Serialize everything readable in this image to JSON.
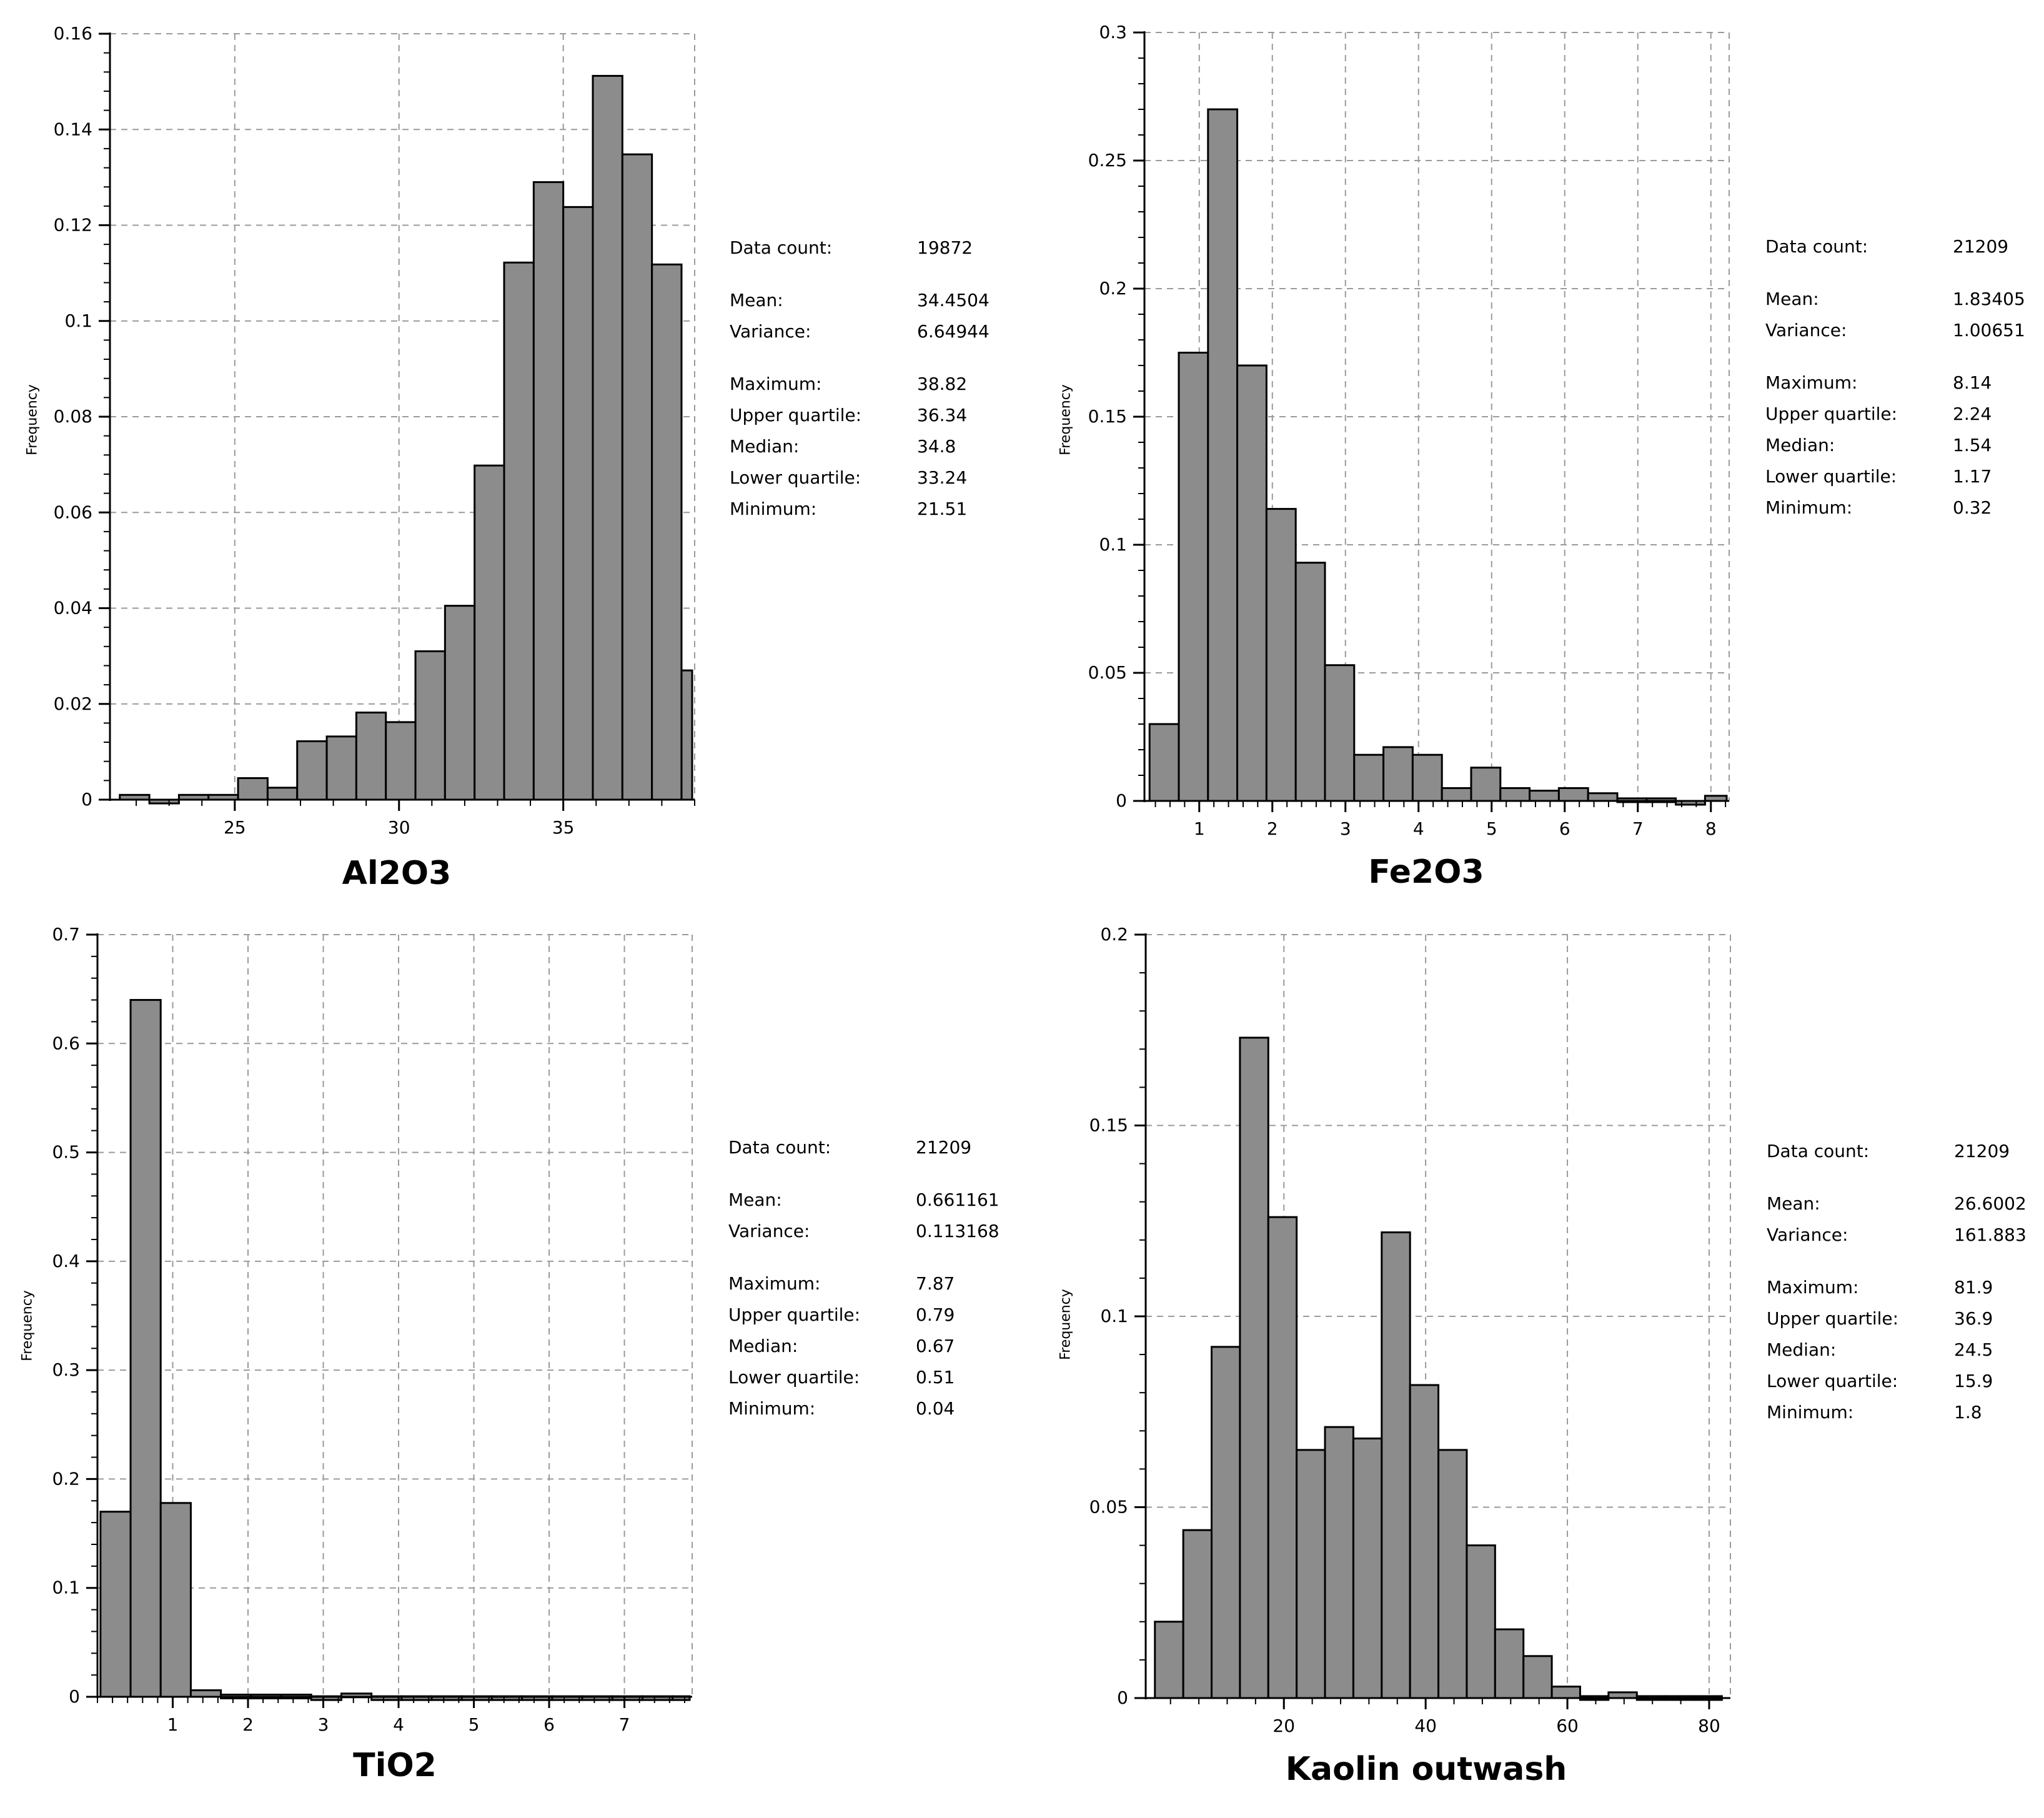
{
  "chart_data": [
    {
      "type": "bar",
      "title": "Al2O3",
      "ylabel": "Frequency",
      "xlabel": "",
      "xlim": [
        21.2,
        39.0
      ],
      "ylim": [
        0,
        0.16
      ],
      "xticks": [
        25,
        30,
        35
      ],
      "yticks": [
        0,
        0.02,
        0.04,
        0.06,
        0.08,
        0.1,
        0.12,
        0.14,
        0.16
      ],
      "bin_width": 0.9,
      "bin_start": 21.5,
      "values": [
        0.001,
        0.0,
        0.001,
        0.001,
        0.0045,
        0.0025,
        0.0122,
        0.0132,
        0.0182,
        0.0162,
        0.031,
        0.0405,
        0.0698,
        0.1122,
        0.129,
        0.1238,
        0.1512,
        0.1348,
        0.1118,
        0.027
      ],
      "stats": {
        "data_count_label": "Data count:",
        "data_count": "19872",
        "mean_label": "Mean:",
        "mean": "34.4504",
        "variance_label": "Variance:",
        "variance": "6.64944",
        "maximum_label": "Maximum:",
        "maximum": "38.82",
        "upper_quartile_label": "Upper quartile:",
        "upper_quartile": "36.34",
        "median_label": "Median:",
        "median": "34.8",
        "lower_quartile_label": "Lower quartile:",
        "lower_quartile": "33.24",
        "minimum_label": "Minimum:",
        "minimum": "21.51"
      }
    },
    {
      "type": "bar",
      "title": "Fe2O3",
      "ylabel": "Frequency",
      "xlabel": "",
      "xlim": [
        0.25,
        8.25
      ],
      "ylim": [
        0,
        0.3
      ],
      "xticks": [
        1,
        2,
        3,
        4,
        5,
        6,
        7,
        8
      ],
      "yticks": [
        0,
        0.05,
        0.1,
        0.15,
        0.2,
        0.25,
        0.3
      ],
      "bin_width": 0.4,
      "bin_start": 0.32,
      "values": [
        0.03,
        0.175,
        0.27,
        0.17,
        0.114,
        0.093,
        0.053,
        0.018,
        0.021,
        0.018,
        0.005,
        0.013,
        0.005,
        0.004,
        0.005,
        0.003,
        0.001,
        0.001,
        0.0,
        0.002
      ],
      "stats": {
        "data_count_label": "Data count:",
        "data_count": "21209",
        "mean_label": "Mean:",
        "mean": "1.83405",
        "variance_label": "Variance:",
        "variance": "1.00651",
        "maximum_label": "Maximum:",
        "maximum": "8.14",
        "upper_quartile_label": "Upper quartile:",
        "upper_quartile": "2.24",
        "median_label": "Median:",
        "median": "1.54",
        "lower_quartile_label": "Lower quartile:",
        "lower_quartile": "1.17",
        "minimum_label": "Minimum:",
        "minimum": "0.32"
      }
    },
    {
      "type": "bar",
      "title": "TiO2",
      "ylabel": "Frequency",
      "xlabel": "",
      "xlim": [
        0.0,
        7.9
      ],
      "ylim": [
        0,
        0.7
      ],
      "xticks": [
        1,
        2,
        3,
        4,
        5,
        6,
        7
      ],
      "yticks": [
        0,
        0.1,
        0.2,
        0.3,
        0.4,
        0.5,
        0.6,
        0.7
      ],
      "bin_width": 0.4,
      "bin_start": 0.04,
      "values": [
        0.17,
        0.64,
        0.178,
        0.006,
        0.002,
        0.002,
        0.002,
        0.0005,
        0.003,
        0.0005,
        0.0005,
        0.0005,
        0.0005,
        0.0005,
        0.0005,
        0.0005,
        0.0005,
        0.0005,
        0.0005,
        0.0005
      ],
      "stats": {
        "data_count_label": "Data count:",
        "data_count": "21209",
        "mean_label": "Mean:",
        "mean": "0.661161",
        "variance_label": "Variance:",
        "variance": "0.113168",
        "maximum_label": "Maximum:",
        "maximum": "7.87",
        "upper_quartile_label": "Upper quartile:",
        "upper_quartile": "0.79",
        "median_label": "Median:",
        "median": "0.67",
        "lower_quartile_label": "Lower quartile:",
        "lower_quartile": "0.51",
        "minimum_label": "Minimum:",
        "minimum": "0.04"
      }
    },
    {
      "type": "bar",
      "title": "Kaolin outwash",
      "ylabel": "Frequency",
      "xlabel": "",
      "xlim": [
        0.5,
        83.0
      ],
      "ylim": [
        0,
        0.2
      ],
      "xticks": [
        20,
        40,
        60,
        80
      ],
      "yticks": [
        0,
        0.05,
        0.1,
        0.15,
        0.2
      ],
      "bin_width": 4.0,
      "bin_start": 1.8,
      "values": [
        0.02,
        0.044,
        0.092,
        0.173,
        0.126,
        0.065,
        0.071,
        0.068,
        0.122,
        0.082,
        0.065,
        0.04,
        0.018,
        0.011,
        0.003,
        0.0005,
        0.0015,
        0.0005,
        0.0005,
        0.0005
      ],
      "stats": {
        "data_count_label": "Data count:",
        "data_count": "21209",
        "mean_label": "Mean:",
        "mean": "26.6002",
        "variance_label": "Variance:",
        "variance": "161.883",
        "maximum_label": "Maximum:",
        "maximum": "81.9",
        "upper_quartile_label": "Upper quartile:",
        "upper_quartile": "36.9",
        "median_label": "Median:",
        "median": "24.5",
        "lower_quartile_label": "Lower quartile:",
        "lower_quartile": "15.9",
        "minimum_label": "Minimum:",
        "minimum": "1.8"
      }
    }
  ],
  "colors": {
    "bar_fill": "#8c8c8c",
    "bar_stroke": "#000000",
    "grid": "#9a9a9a",
    "axis": "#000000"
  }
}
